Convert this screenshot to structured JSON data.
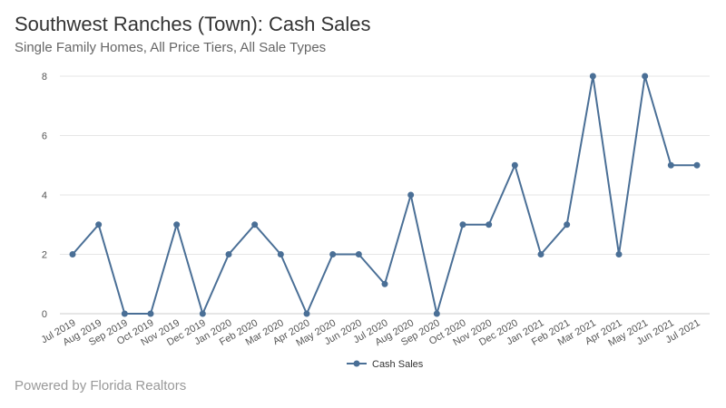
{
  "title": "Southwest Ranches (Town): Cash Sales",
  "subtitle": "Single Family Homes, All Price Tiers, All Sale Types",
  "footer": "Powered by Florida Realtors",
  "colors": {
    "series": "#4a6f96",
    "grid": "#e6e6e6"
  },
  "chart_data": {
    "type": "line",
    "title": "Southwest Ranches (Town): Cash Sales",
    "subtitle": "Single Family Homes, All Price Tiers, All Sale Types",
    "categories": [
      "Jul 2019",
      "Aug 2019",
      "Sep 2019",
      "Oct 2019",
      "Nov 2019",
      "Dec 2019",
      "Jan 2020",
      "Feb 2020",
      "Mar 2020",
      "Apr 2020",
      "May 2020",
      "Jun 2020",
      "Jul 2020",
      "Aug 2020",
      "Sep 2020",
      "Oct 2020",
      "Nov 2020",
      "Dec 2020",
      "Jan 2021",
      "Feb 2021",
      "Mar 2021",
      "Apr 2021",
      "May 2021",
      "Jun 2021",
      "Jul 2021"
    ],
    "series": [
      {
        "name": "Cash Sales",
        "values": [
          2,
          3,
          0,
          0,
          3,
          0,
          2,
          3,
          2,
          0,
          2,
          2,
          1,
          4,
          0,
          3,
          3,
          5,
          2,
          3,
          8,
          2,
          8,
          5,
          5
        ]
      }
    ],
    "yticks": [
      0,
      2,
      4,
      6,
      8
    ],
    "ylim": [
      0,
      8
    ],
    "grid": true,
    "legend": "bottom-center"
  }
}
